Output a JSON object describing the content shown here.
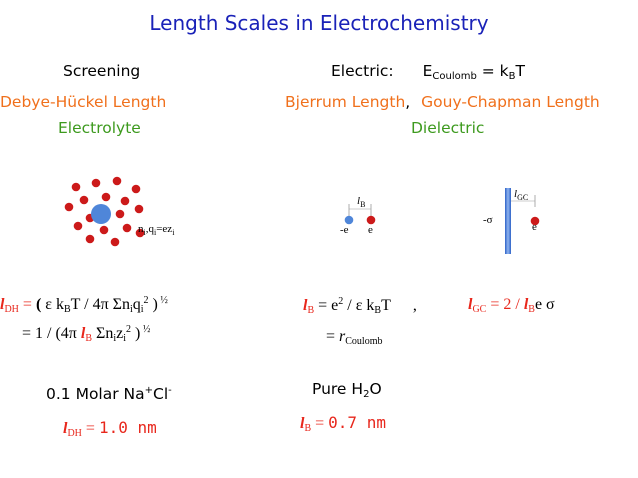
{
  "title": "Length Scales  in  Electrochemistry",
  "left": {
    "header": "Screening",
    "name": "Debye-Hückel Length",
    "medium": "Electrolyte",
    "ion_label": "n",
    "ion_label_i1": "i",
    "ion_label_q": ",q",
    "ion_label_i2": "i",
    "ion_label_eq": "=ez",
    "ion_label_i3": "i",
    "eq1_l": "l",
    "eq1_sub": "DH",
    "eq1_eq": " = ",
    "eq1_open": "( ",
    "eq1_body": "ε k",
    "eq1_B": "B",
    "eq1_body2": "T / 4π Σn",
    "eq1_i1": "i",
    "eq1_q": "q",
    "eq1_i2": "i",
    "eq1_sq": "2",
    "eq1_close": " )",
    "eq1_half": " ½",
    "eq2_pre": "= 1 / (4π ",
    "eq2_l": "l",
    "eq2_B": "B",
    "eq2_mid": " Σn",
    "eq2_i1": "i",
    "eq2_z": "z",
    "eq2_i2": "i",
    "eq2_sq": "2",
    "eq2_close": " )",
    "eq2_half": " ½",
    "example_pre": "0.1 Molar Na",
    "example_plus": "+",
    "example_cl": "Cl",
    "example_minus": "-",
    "result_l": "l",
    "result_sub": "DH",
    "result_eq": " = ",
    "result_val": "1.0 nm"
  },
  "right": {
    "header_pre": "Electric:",
    "header_E": "E",
    "header_Esub": "Coulomb",
    "header_eq": " = k",
    "header_B": "B",
    "header_T": "T",
    "name1": "Bjerrum  Length",
    "comma": ",",
    "name2": "Gouy-Chapman Length",
    "medium": "Dielectric",
    "bj_l": "l",
    "bj_lsub": "B",
    "bj_neg": "-e",
    "bj_pos": "e",
    "gc_l": "l",
    "gc_lsub": "GC",
    "gc_sigma": "-σ",
    "gc_pos": "e",
    "eqB_l": "l",
    "eqB_sub": "B",
    "eqB_eq": "  =  e",
    "eqB_sq": "2",
    "eqB_rest": " / ε k",
    "eqB_B": "B",
    "eqB_T": "T",
    "eqB_comma": ",",
    "eqGC_l": "l",
    "eqGC_sub": "GC",
    "eqGC_eq": " = 2 / ",
    "eqGC_l2": "l",
    "eqGC_B": "B",
    "eqGC_rest": "e σ",
    "eq2_eq": "=  ",
    "eq2_r": "r",
    "eq2_sub": "Coulomb",
    "example_pre": "Pure H",
    "example_2": "2",
    "example_O": "O",
    "result_l": "l",
    "result_sub": "B",
    "result_eq": " = ",
    "result_val": "0.7 nm"
  },
  "colors": {
    "title": "#1a22b8",
    "orange": "#f0701c",
    "green": "#3d9a1e",
    "red": "#e8271c",
    "ion_red": "#cc1a1a",
    "ion_blue": "#4f86d9"
  }
}
